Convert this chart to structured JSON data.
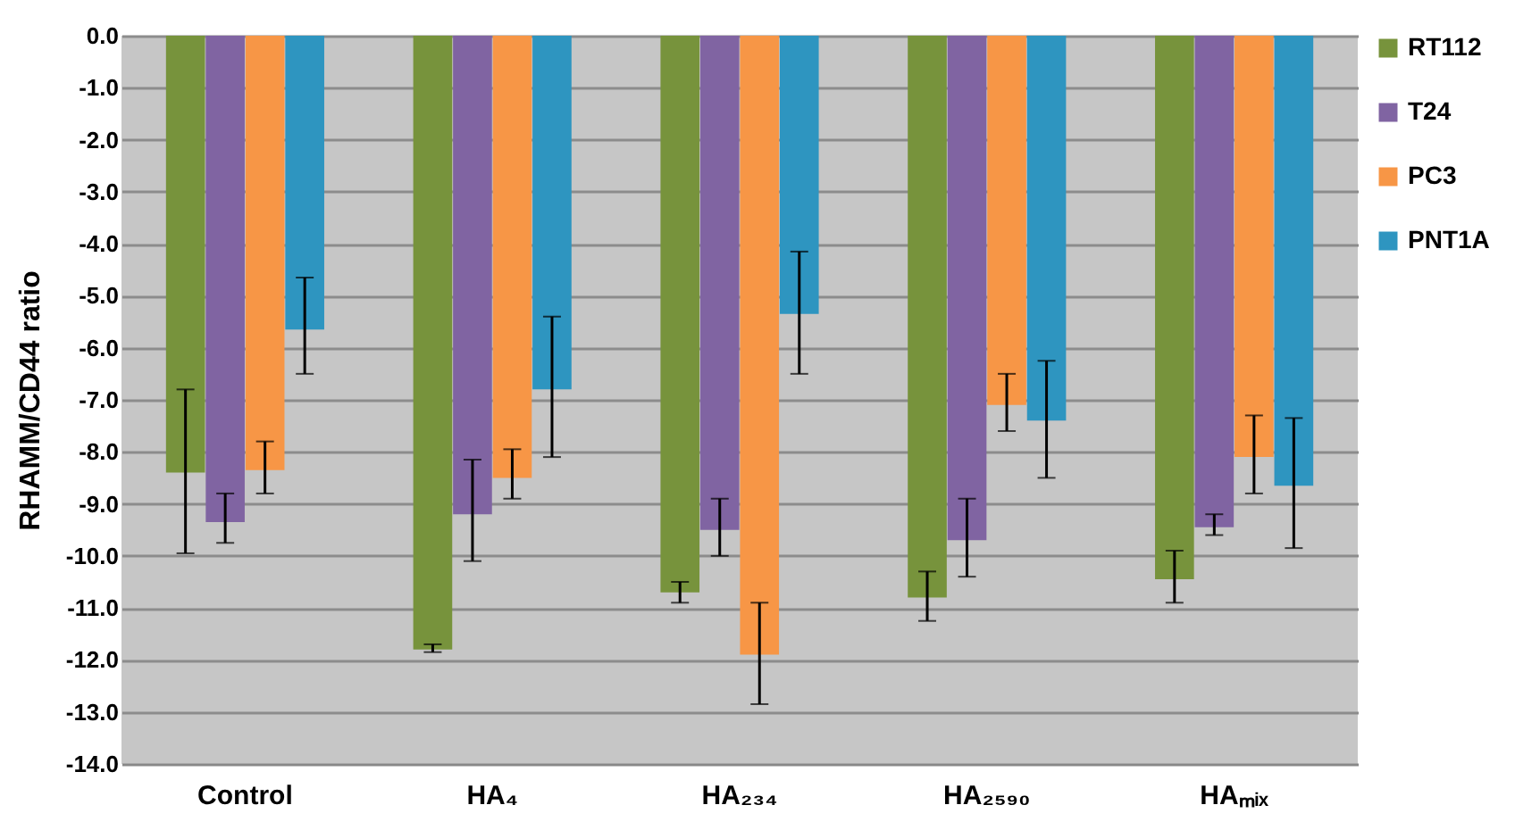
{
  "chart_data": {
    "type": "bar",
    "ylabel": "RHAMM/CD44 ratio",
    "categories": [
      "Control",
      "HA₄",
      "HA₂₃₄",
      "HA₂₅₉₀",
      "HAₘᵢₓ"
    ],
    "series": [
      {
        "name": "RT112",
        "color": "#77933c",
        "values": [
          -8.4,
          -11.8,
          -10.7,
          -10.8,
          -10.45
        ],
        "errors": [
          [
            -9.95,
            -6.8
          ],
          [
            -11.85,
            -11.7
          ],
          [
            -10.9,
            -10.5
          ],
          [
            -11.25,
            -10.3
          ],
          [
            -10.9,
            -9.9
          ]
        ]
      },
      {
        "name": "T24",
        "color": "#8064a2",
        "values": [
          -9.35,
          -9.2,
          -9.5,
          -9.7,
          -9.45
        ],
        "errors": [
          [
            -9.75,
            -8.8
          ],
          [
            -10.1,
            -8.15
          ],
          [
            -10.0,
            -8.9
          ],
          [
            -10.4,
            -8.9
          ],
          [
            -9.6,
            -9.2
          ]
        ]
      },
      {
        "name": "PC3",
        "color": "#f79646",
        "values": [
          -8.35,
          -8.5,
          -11.9,
          -7.1,
          -8.1
        ],
        "errors": [
          [
            -8.8,
            -7.8
          ],
          [
            -8.9,
            -7.95
          ],
          [
            -12.85,
            -10.9
          ],
          [
            -7.6,
            -6.5
          ],
          [
            -8.8,
            -7.3
          ]
        ]
      },
      {
        "name": "PNT1A",
        "color": "#2e95c0",
        "values": [
          -5.65,
          -6.8,
          -5.35,
          -7.4,
          -8.65
        ],
        "errors": [
          [
            -6.5,
            -4.65
          ],
          [
            -8.1,
            -5.4
          ],
          [
            -6.5,
            -4.15
          ],
          [
            -8.5,
            -6.25
          ],
          [
            -9.85,
            -7.35
          ]
        ]
      }
    ],
    "ylim": [
      -14,
      0
    ],
    "yticks": [
      {
        "value": 0,
        "label": "0.0"
      },
      {
        "value": -1,
        "label": "-1.0"
      },
      {
        "value": -2,
        "label": "-2.0"
      },
      {
        "value": -3,
        "label": "-3.0"
      },
      {
        "value": -4,
        "label": "-4.0"
      },
      {
        "value": -5,
        "label": "-5.0"
      },
      {
        "value": -6,
        "label": "-6.0"
      },
      {
        "value": -7,
        "label": "-7.0"
      },
      {
        "value": -8,
        "label": "-8.0"
      },
      {
        "value": -9,
        "label": "-9.0"
      },
      {
        "value": -10,
        "label": "-10.0"
      },
      {
        "value": -11,
        "label": "-11.0"
      },
      {
        "value": -12,
        "label": "-12.0"
      },
      {
        "value": -13,
        "label": "-13.0"
      },
      {
        "value": -14,
        "label": "-14.0"
      }
    ],
    "grid": "y",
    "legend": "right"
  }
}
